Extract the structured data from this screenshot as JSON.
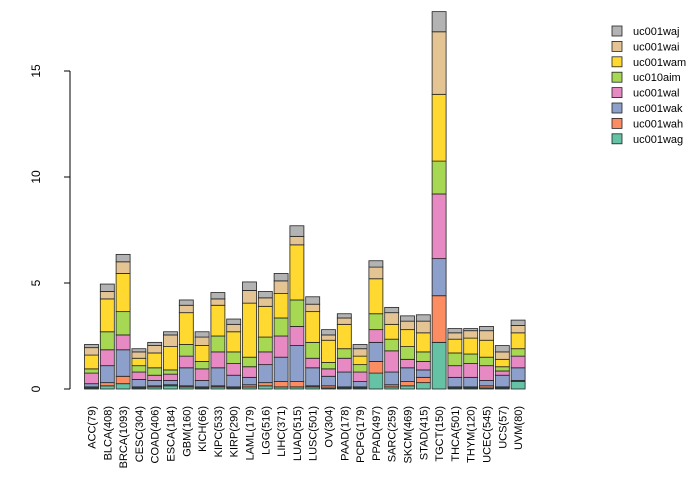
{
  "chart_data": {
    "type": "bar",
    "stacked": true,
    "title": "",
    "xlabel": "",
    "ylabel": "",
    "ylim": [
      0,
      18
    ],
    "yticks": [
      0,
      5,
      10,
      15
    ],
    "legend_position": "top-right",
    "categories": [
      "ACC(79)",
      "BLCA(408)",
      "BRCA(1093)",
      "CESC(304)",
      "COAD(406)",
      "ESCA(184)",
      "GBM(160)",
      "KICH(66)",
      "KIPC(533)",
      "KIRP(290)",
      "LAML(179)",
      "LGG(516)",
      "LIHC(371)",
      "LUAD(515)",
      "LUSC(501)",
      "OV(304)",
      "PAAD(178)",
      "PCPG(179)",
      "PPAD(497)",
      "SARC(259)",
      "SKCM(469)",
      "STAD(415)",
      "TGCT(150)",
      "THCA(501)",
      "THYM(120)",
      "UCEC(545)",
      "UCS(57)",
      "UVM(80)"
    ],
    "series": [
      {
        "name": "uc001wag",
        "color": "#66C2A5",
        "values": [
          0.05,
          0.15,
          0.25,
          0.05,
          0.1,
          0.15,
          0.1,
          0.05,
          0.1,
          0.05,
          0.1,
          0.15,
          0.1,
          0.1,
          0.1,
          0.05,
          0.05,
          0.05,
          0.75,
          0.1,
          0.15,
          0.3,
          2.2,
          0.05,
          0.05,
          0.05,
          0.05,
          0.35
        ]
      },
      {
        "name": "uc001wah",
        "color": "#FC8D62",
        "values": [
          0.05,
          0.15,
          0.35,
          0.05,
          0.05,
          0.05,
          0.05,
          0.05,
          0.05,
          0.05,
          0.1,
          0.15,
          0.25,
          0.25,
          0.05,
          0.1,
          0.05,
          0.05,
          0.55,
          0.1,
          0.2,
          0.25,
          2.2,
          0.05,
          0.05,
          0.1,
          0.05,
          0.05
        ]
      },
      {
        "name": "uc001wak",
        "color": "#8DA0CB",
        "values": [
          0.15,
          0.8,
          1.25,
          0.35,
          0.25,
          0.2,
          0.85,
          0.3,
          0.85,
          0.55,
          0.35,
          0.85,
          1.15,
          1.7,
          0.85,
          0.45,
          0.7,
          0.25,
          0.9,
          0.6,
          0.65,
          0.35,
          1.75,
          0.45,
          0.45,
          0.25,
          0.55,
          0.6
        ]
      },
      {
        "name": "uc001wal",
        "color": "#E78AC3",
        "values": [
          0.5,
          0.75,
          0.7,
          0.35,
          0.25,
          0.3,
          0.55,
          0.55,
          0.75,
          0.55,
          0.5,
          0.6,
          1.0,
          0.9,
          0.45,
          0.35,
          0.65,
          0.45,
          0.6,
          1.0,
          0.4,
          0.4,
          3.05,
          0.55,
          0.65,
          0.7,
          0.2,
          0.55
        ]
      },
      {
        "name": "uc010aim",
        "color": "#A6D854",
        "values": [
          0.2,
          0.85,
          1.1,
          0.3,
          0.35,
          0.2,
          0.55,
          0.35,
          0.75,
          0.55,
          0.45,
          0.7,
          0.85,
          1.25,
          0.75,
          0.3,
          0.45,
          0.35,
          0.75,
          0.55,
          0.6,
          0.45,
          1.55,
          0.6,
          0.45,
          0.4,
          0.2,
          0.35
        ]
      },
      {
        "name": "uc001wam",
        "color": "#FFD92F",
        "values": [
          0.65,
          1.55,
          1.8,
          0.35,
          0.7,
          1.1,
          1.5,
          0.75,
          1.45,
          0.95,
          2.55,
          1.45,
          1.15,
          2.6,
          1.45,
          1.05,
          1.15,
          0.4,
          1.65,
          0.7,
          0.8,
          0.9,
          3.15,
          0.65,
          0.75,
          0.8,
          0.35,
          0.75
        ]
      },
      {
        "name": "uc001wai",
        "color": "#E5C494",
        "values": [
          0.35,
          0.35,
          0.55,
          0.3,
          0.35,
          0.55,
          0.35,
          0.4,
          0.3,
          0.35,
          0.6,
          0.4,
          0.6,
          0.4,
          0.35,
          0.25,
          0.3,
          0.35,
          0.55,
          0.55,
          0.4,
          0.55,
          2.95,
          0.3,
          0.35,
          0.45,
          0.35,
          0.35
        ]
      },
      {
        "name": "uc001waj",
        "color": "#B3B3B3",
        "values": [
          0.15,
          0.35,
          0.35,
          0.15,
          0.15,
          0.15,
          0.25,
          0.25,
          0.3,
          0.25,
          0.4,
          0.3,
          0.35,
          0.5,
          0.35,
          0.25,
          0.2,
          0.2,
          0.3,
          0.25,
          0.25,
          0.3,
          0.95,
          0.2,
          0.1,
          0.2,
          0.3,
          0.25
        ]
      }
    ]
  }
}
